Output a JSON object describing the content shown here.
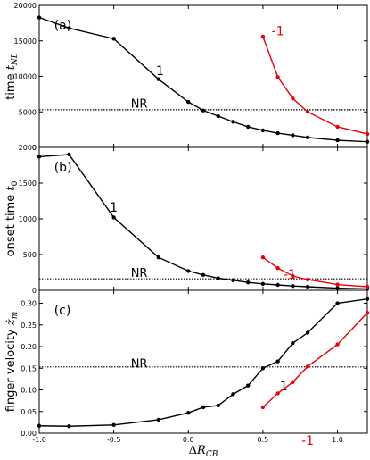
{
  "chart_data": [
    {
      "type": "line",
      "panel_label": "(a)",
      "ylabel": "time $t_{NL}$",
      "ylim": [
        0,
        20000
      ],
      "yticks": [
        0,
        5000,
        10000,
        15000,
        20000
      ],
      "xlim": [
        -1.0,
        1.2
      ],
      "reference": {
        "label": "NR",
        "value": 5300
      },
      "series": [
        {
          "name": "1",
          "color": "#000000",
          "x": [
            -1.0,
            -0.8,
            -0.5,
            -0.2,
            0.0,
            0.1,
            0.2,
            0.3,
            0.4,
            0.5,
            0.6,
            0.7,
            0.8,
            1.0,
            1.2
          ],
          "y": [
            18300,
            16800,
            15300,
            9600,
            6400,
            5200,
            4400,
            3600,
            2900,
            2400,
            2000,
            1700,
            1400,
            1000,
            800
          ]
        },
        {
          "name": "-1",
          "color": "#e8000b",
          "x": [
            0.5,
            0.6,
            0.7,
            0.8,
            1.0,
            1.2
          ],
          "y": [
            15600,
            9900,
            6900,
            5000,
            2900,
            1900
          ]
        }
      ]
    },
    {
      "type": "line",
      "panel_label": "(b)",
      "ylabel": "onset time $t_0$",
      "ylim": [
        0,
        2000
      ],
      "yticks": [
        0,
        500,
        1000,
        1500,
        2000
      ],
      "xlim": [
        -1.0,
        1.2
      ],
      "reference": {
        "label": "NR",
        "value": 160
      },
      "series": [
        {
          "name": "1",
          "color": "#000000",
          "x": [
            -1.0,
            -0.8,
            -0.5,
            -0.2,
            0.0,
            0.1,
            0.2,
            0.3,
            0.4,
            0.5,
            0.6,
            0.7,
            0.8,
            1.0,
            1.2
          ],
          "y": [
            1870,
            1900,
            1020,
            460,
            270,
            215,
            170,
            140,
            110,
            90,
            75,
            60,
            50,
            30,
            20
          ]
        },
        {
          "name": "-1",
          "color": "#e8000b",
          "x": [
            0.5,
            0.6,
            0.7,
            0.8,
            1.0,
            1.2
          ],
          "y": [
            460,
            310,
            200,
            150,
            80,
            50
          ]
        }
      ]
    },
    {
      "type": "line",
      "panel_label": "(c)",
      "ylabel": "finger velocity $\\dot{z}_m$",
      "xlabel": "$\\Delta R_{CB}$",
      "ylim": [
        0.0,
        0.33
      ],
      "yticks": [
        0.0,
        0.05,
        0.1,
        0.15,
        0.2,
        0.25,
        0.3
      ],
      "xlim": [
        -1.0,
        1.2
      ],
      "xticks": [
        -1.0,
        -0.5,
        0.0,
        0.5,
        1.0
      ],
      "reference": {
        "label": "NR",
        "value": 0.153
      },
      "series": [
        {
          "name": "1",
          "color": "#000000",
          "x": [
            -1.0,
            -0.8,
            -0.5,
            -0.2,
            0.0,
            0.1,
            0.2,
            0.3,
            0.4,
            0.5,
            0.6,
            0.7,
            0.8,
            1.0,
            1.2
          ],
          "y": [
            0.017,
            0.016,
            0.019,
            0.031,
            0.047,
            0.06,
            0.064,
            0.09,
            0.11,
            0.15,
            0.166,
            0.208,
            0.232,
            0.3,
            0.31
          ]
        },
        {
          "name": "-1",
          "color": "#e8000b",
          "x": [
            0.5,
            0.6,
            0.7,
            0.8,
            1.0,
            1.2
          ],
          "y": [
            0.06,
            0.092,
            0.118,
            0.154,
            0.205,
            0.278
          ]
        }
      ]
    }
  ],
  "tick_labels": {
    "a_y": [
      "0",
      "5000",
      "10000",
      "15000",
      "20000"
    ],
    "b_y": [
      "0",
      "500",
      "1000",
      "1500",
      "2000"
    ],
    "c_y": [
      "0.00",
      "0.05",
      "0.10",
      "0.15",
      "0.20",
      "0.25",
      "0.30"
    ],
    "x": [
      "-1.0",
      "-0.5",
      "0.0",
      "0.5",
      "1.0"
    ]
  }
}
